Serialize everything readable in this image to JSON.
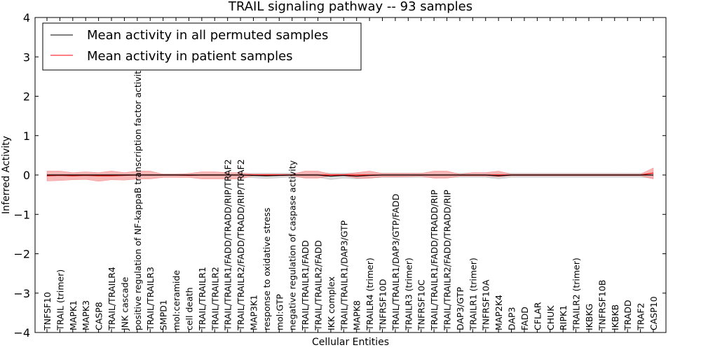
{
  "chart_data": {
    "type": "line",
    "title": "TRAIL signaling pathway -- 93 samples",
    "xlabel": "Cellular Entities",
    "ylabel": "Inferred Activity",
    "ylim": [
      -4,
      4
    ],
    "yticks": [
      -4,
      -3,
      -2,
      -1,
      0,
      1,
      2,
      3,
      4
    ],
    "ytick_labels": [
      "−4",
      "−3",
      "−2",
      "−1",
      "0",
      "1",
      "2",
      "3",
      "4"
    ],
    "grid": false,
    "legend_position": "top-left",
    "categories": [
      "TNFSF10",
      "TRAIL (trimer)",
      "MAPK1",
      "MAPK3",
      "CASP8",
      "TRAIL/TRAILR4",
      "JNK cascade",
      "positive regulation of NF-kappaB transcription factor activity",
      "TRAIL/TRAILR3",
      "SMPD1",
      "mol:ceramide",
      "cell death",
      "TRAIL/TRAILR1",
      "TRAIL/TRAILR2",
      "TRAIL/TRAILR1/FADD/TRADD/RIP/TRAF2",
      "TRAIL/TRAILR2/FADD/TRADD/RIP/TRAF2",
      "MAP3K1",
      "response to oxidative stress",
      "mol:GTP",
      "negative regulation of caspase activity",
      "TRAIL/TRAILR1/FADD",
      "TRAIL/TRAILR2/FADD",
      "IKK complex",
      "TRAIL/TRAILR1/DAP3/GTP",
      "MAPK8",
      "TRAILR4 (trimer)",
      "TNFRSF10D",
      "TRAIL/TRAILR1/DAP3/GTP/FADD",
      "TRAILR3 (trimer)",
      "TNFRSF10C",
      "TRAIL/TRAILR1/FADD/TRADD/RIP",
      "TRAIL/TRAILR2/FADD/TRADD/RIP",
      "DAP3/GTP",
      "TRAILR1 (trimer)",
      "TNFRSF10A",
      "MAP2K4",
      "DAP3",
      "FADD",
      "CFLAR",
      "CHUK",
      "RIPK1",
      "TRAILR2 (trimer)",
      "IKBKG",
      "TNFRSF10B",
      "IKBKB",
      "TRADD",
      "TRAF2",
      "CASP10"
    ],
    "series": [
      {
        "name": "Mean activity in all permuted samples",
        "color": "#000000",
        "band_color": "#cccccc",
        "values": [
          0,
          0,
          0,
          0,
          0,
          0,
          0,
          0,
          0,
          0,
          0,
          0,
          0,
          0,
          0,
          0,
          -0.01,
          -0.02,
          -0.01,
          0,
          0,
          0,
          -0.03,
          -0.01,
          -0.03,
          -0.01,
          0,
          0,
          0,
          0,
          0,
          0,
          0,
          0,
          0,
          -0.02,
          0,
          0,
          0,
          0,
          0,
          0,
          0,
          0,
          0,
          0,
          0,
          0
        ],
        "band_lower": [
          -0.03,
          -0.03,
          -0.03,
          -0.03,
          -0.03,
          -0.03,
          -0.03,
          -0.03,
          -0.03,
          -0.03,
          -0.03,
          -0.03,
          -0.03,
          -0.03,
          -0.03,
          -0.03,
          -0.07,
          -0.09,
          -0.07,
          -0.05,
          -0.06,
          -0.06,
          -0.12,
          -0.08,
          -0.1,
          -0.08,
          -0.06,
          -0.06,
          -0.06,
          -0.06,
          -0.06,
          -0.06,
          -0.06,
          -0.06,
          -0.06,
          -0.1,
          -0.06,
          -0.06,
          -0.06,
          -0.06,
          -0.06,
          -0.06,
          -0.06,
          -0.06,
          -0.06,
          -0.06,
          -0.06,
          -0.08
        ],
        "band_upper": [
          0.03,
          0.03,
          0.03,
          0.03,
          0.03,
          0.03,
          0.03,
          0.03,
          0.03,
          0.03,
          0.03,
          0.03,
          0.03,
          0.03,
          0.03,
          0.03,
          0.05,
          0.05,
          0.05,
          0.05,
          0.05,
          0.05,
          0.05,
          0.05,
          0.05,
          0.05,
          0.05,
          0.05,
          0.05,
          0.05,
          0.05,
          0.05,
          0.05,
          0.05,
          0.05,
          0.05,
          0.05,
          0.05,
          0.05,
          0.05,
          0.05,
          0.05,
          0.05,
          0.05,
          0.05,
          0.05,
          0.05,
          0.05
        ]
      },
      {
        "name": "Mean activity in patient samples",
        "color": "#ff0000",
        "band_color": "#f4a0a0",
        "values": [
          -0.02,
          -0.01,
          -0.02,
          -0.01,
          -0.02,
          -0.02,
          -0.01,
          0,
          0,
          0,
          0,
          -0.01,
          0,
          0,
          0,
          0,
          0,
          0,
          0,
          0,
          0,
          0,
          0,
          0,
          0,
          0,
          0,
          0,
          0,
          0,
          0,
          0,
          0,
          0,
          0,
          0,
          0,
          0,
          0,
          0,
          0,
          0,
          0,
          0,
          0,
          0,
          0,
          0.05
        ],
        "band_lower": [
          -0.15,
          -0.14,
          -0.12,
          -0.11,
          -0.16,
          -0.12,
          -0.13,
          -0.1,
          -0.1,
          -0.06,
          -0.06,
          -0.06,
          -0.1,
          -0.1,
          -0.1,
          -0.1,
          -0.02,
          -0.02,
          -0.02,
          -0.02,
          -0.08,
          -0.08,
          -0.02,
          -0.02,
          -0.08,
          -0.08,
          -0.05,
          -0.05,
          -0.04,
          -0.03,
          -0.08,
          -0.08,
          -0.03,
          -0.03,
          -0.03,
          -0.05,
          -0.02,
          -0.02,
          -0.02,
          -0.02,
          -0.02,
          -0.02,
          -0.02,
          -0.02,
          -0.02,
          -0.02,
          -0.02,
          -0.1
        ],
        "band_upper": [
          0.1,
          0.1,
          0.06,
          0.08,
          0.06,
          0.1,
          0.06,
          0.1,
          0.1,
          0.02,
          0.02,
          0.04,
          0.08,
          0.08,
          0.06,
          0.06,
          0.02,
          0.02,
          0.02,
          0.02,
          0.1,
          0.1,
          0.02,
          0.02,
          0.06,
          0.1,
          0.04,
          0.04,
          0.04,
          0.04,
          0.1,
          0.1,
          0.02,
          0.06,
          0.06,
          0.1,
          0.02,
          0.02,
          0.02,
          0.02,
          0.02,
          0.02,
          0.02,
          0.02,
          0.02,
          0.02,
          0.02,
          0.18
        ]
      }
    ]
  }
}
